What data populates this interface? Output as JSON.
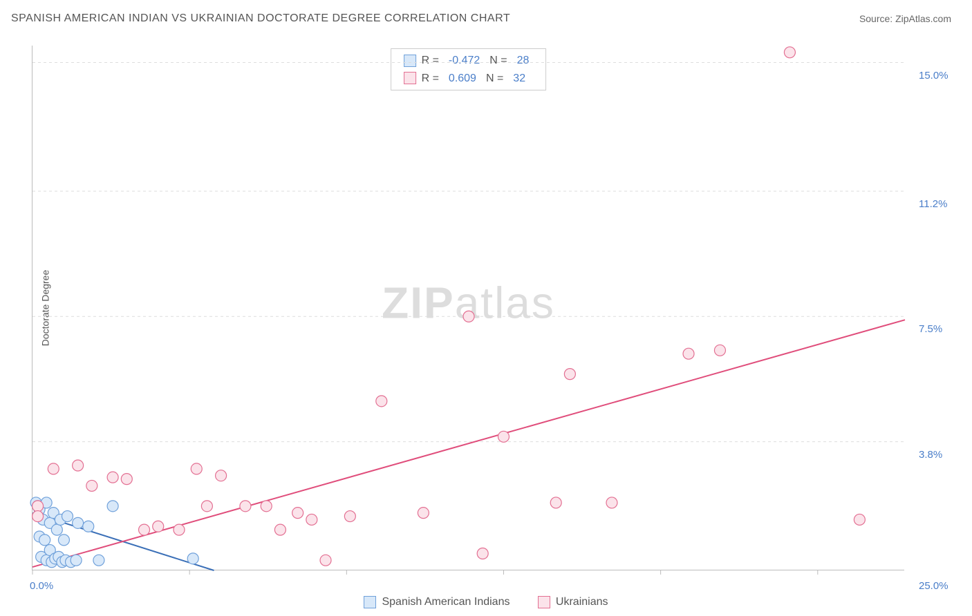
{
  "header": {
    "title": "SPANISH AMERICAN INDIAN VS UKRAINIAN DOCTORATE DEGREE CORRELATION CHART",
    "source": "Source: ZipAtlas.com"
  },
  "watermark": {
    "zip": "ZIP",
    "atlas": "atlas"
  },
  "chart": {
    "type": "scatter",
    "ylabel": "Doctorate Degree",
    "xlim": [
      0,
      25
    ],
    "ylim": [
      0,
      15.5
    ],
    "xtick_positions": [
      0,
      4.5,
      9,
      13.5,
      18,
      22.5
    ],
    "xtick_labels_visible": {
      "left": "0.0%",
      "right": "25.0%"
    },
    "yticks": [
      {
        "value": 3.8,
        "label": "3.8%"
      },
      {
        "value": 7.5,
        "label": "7.5%"
      },
      {
        "value": 11.2,
        "label": "11.2%"
      },
      {
        "value": 15.0,
        "label": "15.0%"
      }
    ],
    "grid_color": "#dddddd",
    "axis_color": "#bbbbbb",
    "tick_label_color": "#4a7ec9",
    "background_color": "#ffffff",
    "marker_radius": 8,
    "marker_stroke_width": 1.2,
    "trend_line_width": 2,
    "series": [
      {
        "name": "Spanish American Indians",
        "fill": "#d8e8f9",
        "stroke": "#6fa0da",
        "line_color": "#3a6fb7",
        "R": "-0.472",
        "N": "28",
        "trend": {
          "x1": 0,
          "y1": 1.7,
          "x2": 5.2,
          "y2": 0
        },
        "points": [
          [
            0.1,
            2.0
          ],
          [
            0.15,
            1.9
          ],
          [
            0.2,
            1.8
          ],
          [
            0.2,
            1.0
          ],
          [
            0.25,
            0.4
          ],
          [
            0.3,
            1.5
          ],
          [
            0.35,
            0.9
          ],
          [
            0.4,
            2.0
          ],
          [
            0.4,
            0.3
          ],
          [
            0.5,
            1.4
          ],
          [
            0.5,
            0.6
          ],
          [
            0.55,
            0.25
          ],
          [
            0.6,
            1.7
          ],
          [
            0.65,
            0.35
          ],
          [
            0.7,
            1.2
          ],
          [
            0.75,
            0.4
          ],
          [
            0.8,
            1.5
          ],
          [
            0.85,
            0.25
          ],
          [
            0.9,
            0.9
          ],
          [
            0.95,
            0.3
          ],
          [
            1.0,
            1.6
          ],
          [
            1.1,
            0.25
          ],
          [
            1.25,
            0.3
          ],
          [
            1.3,
            1.4
          ],
          [
            1.6,
            1.3
          ],
          [
            1.9,
            0.3
          ],
          [
            2.3,
            1.9
          ],
          [
            4.6,
            0.35
          ]
        ]
      },
      {
        "name": "Ukrainians",
        "fill": "#fbe3ea",
        "stroke": "#e36f92",
        "line_color": "#e04d7b",
        "R": "0.609",
        "N": "32",
        "trend": {
          "x1": 0,
          "y1": 0.1,
          "x2": 25,
          "y2": 7.4
        },
        "points": [
          [
            0.15,
            1.9
          ],
          [
            0.15,
            1.6
          ],
          [
            0.6,
            3.0
          ],
          [
            1.3,
            3.1
          ],
          [
            1.7,
            2.5
          ],
          [
            2.3,
            2.75
          ],
          [
            2.7,
            2.7
          ],
          [
            3.2,
            1.2
          ],
          [
            3.6,
            1.3
          ],
          [
            4.2,
            1.2
          ],
          [
            4.7,
            3.0
          ],
          [
            5.0,
            1.9
          ],
          [
            5.4,
            2.8
          ],
          [
            6.1,
            1.9
          ],
          [
            6.7,
            1.9
          ],
          [
            7.1,
            1.2
          ],
          [
            7.6,
            1.7
          ],
          [
            8.0,
            1.5
          ],
          [
            8.4,
            0.3
          ],
          [
            9.1,
            1.6
          ],
          [
            10.0,
            5.0
          ],
          [
            11.2,
            1.7
          ],
          [
            12.5,
            7.5
          ],
          [
            12.9,
            0.5
          ],
          [
            13.5,
            3.95
          ],
          [
            15.0,
            2.0
          ],
          [
            15.4,
            5.8
          ],
          [
            16.6,
            2.0
          ],
          [
            18.8,
            6.4
          ],
          [
            19.7,
            6.5
          ],
          [
            21.7,
            15.3
          ],
          [
            23.7,
            1.5
          ]
        ]
      }
    ]
  },
  "stats_legend": {
    "r_label": "R =",
    "n_label": "N ="
  },
  "bottom_legend": [
    {
      "label": "Spanish American Indians",
      "fill": "#d8e8f9",
      "stroke": "#6fa0da"
    },
    {
      "label": "Ukrainians",
      "fill": "#fbe3ea",
      "stroke": "#e36f92"
    }
  ]
}
